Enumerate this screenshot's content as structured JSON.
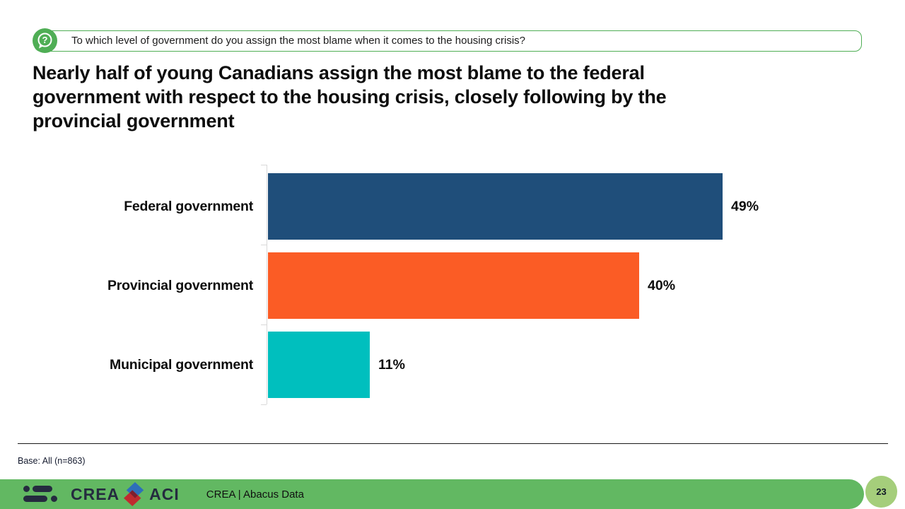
{
  "question_banner": {
    "icon": "question-bubble-icon",
    "text": "To which level of government do you assign the most blame when it comes to the housing crisis?"
  },
  "headline": {
    "full": "Nearly half of young Canadians assign the most blame to the federal government with respect to the housing crisis, closely following by the provincial government",
    "lines": [
      "Nearly half of young Canadians assign the most blame to the federal",
      "government with respect to the housing crisis, closely following by the",
      "provincial government"
    ]
  },
  "chart_data": {
    "type": "bar",
    "orientation": "horizontal",
    "title": "",
    "xlabel": "",
    "ylabel": "",
    "categories": [
      "Federal government",
      "Provincial government",
      "Municipal government"
    ],
    "values": [
      49,
      40,
      11
    ],
    "value_labels": [
      "49%",
      "40%",
      "11%"
    ],
    "colors": [
      "#1F4E7A",
      "#FB5C25",
      "#00BFBE"
    ],
    "xlim": [
      0,
      100
    ],
    "grid": false,
    "legend": "none"
  },
  "footnote": "Base: All (n=863)",
  "footer": {
    "logo_crea": "CREA",
    "logo_aci": "ACI",
    "source_label": "CREA | Abacus Data",
    "page_number": "23"
  },
  "colors": {
    "banner_green": "#4FAE55",
    "footer_green": "#62B862",
    "circle_green": "#A5CE7B",
    "logo_navy": "#252B3F",
    "diamond_blue": "#2E6FBA",
    "diamond_red": "#C02B30",
    "diamond_overlap": "#7D1F2E",
    "axis_gray": "#D9D9D9"
  }
}
